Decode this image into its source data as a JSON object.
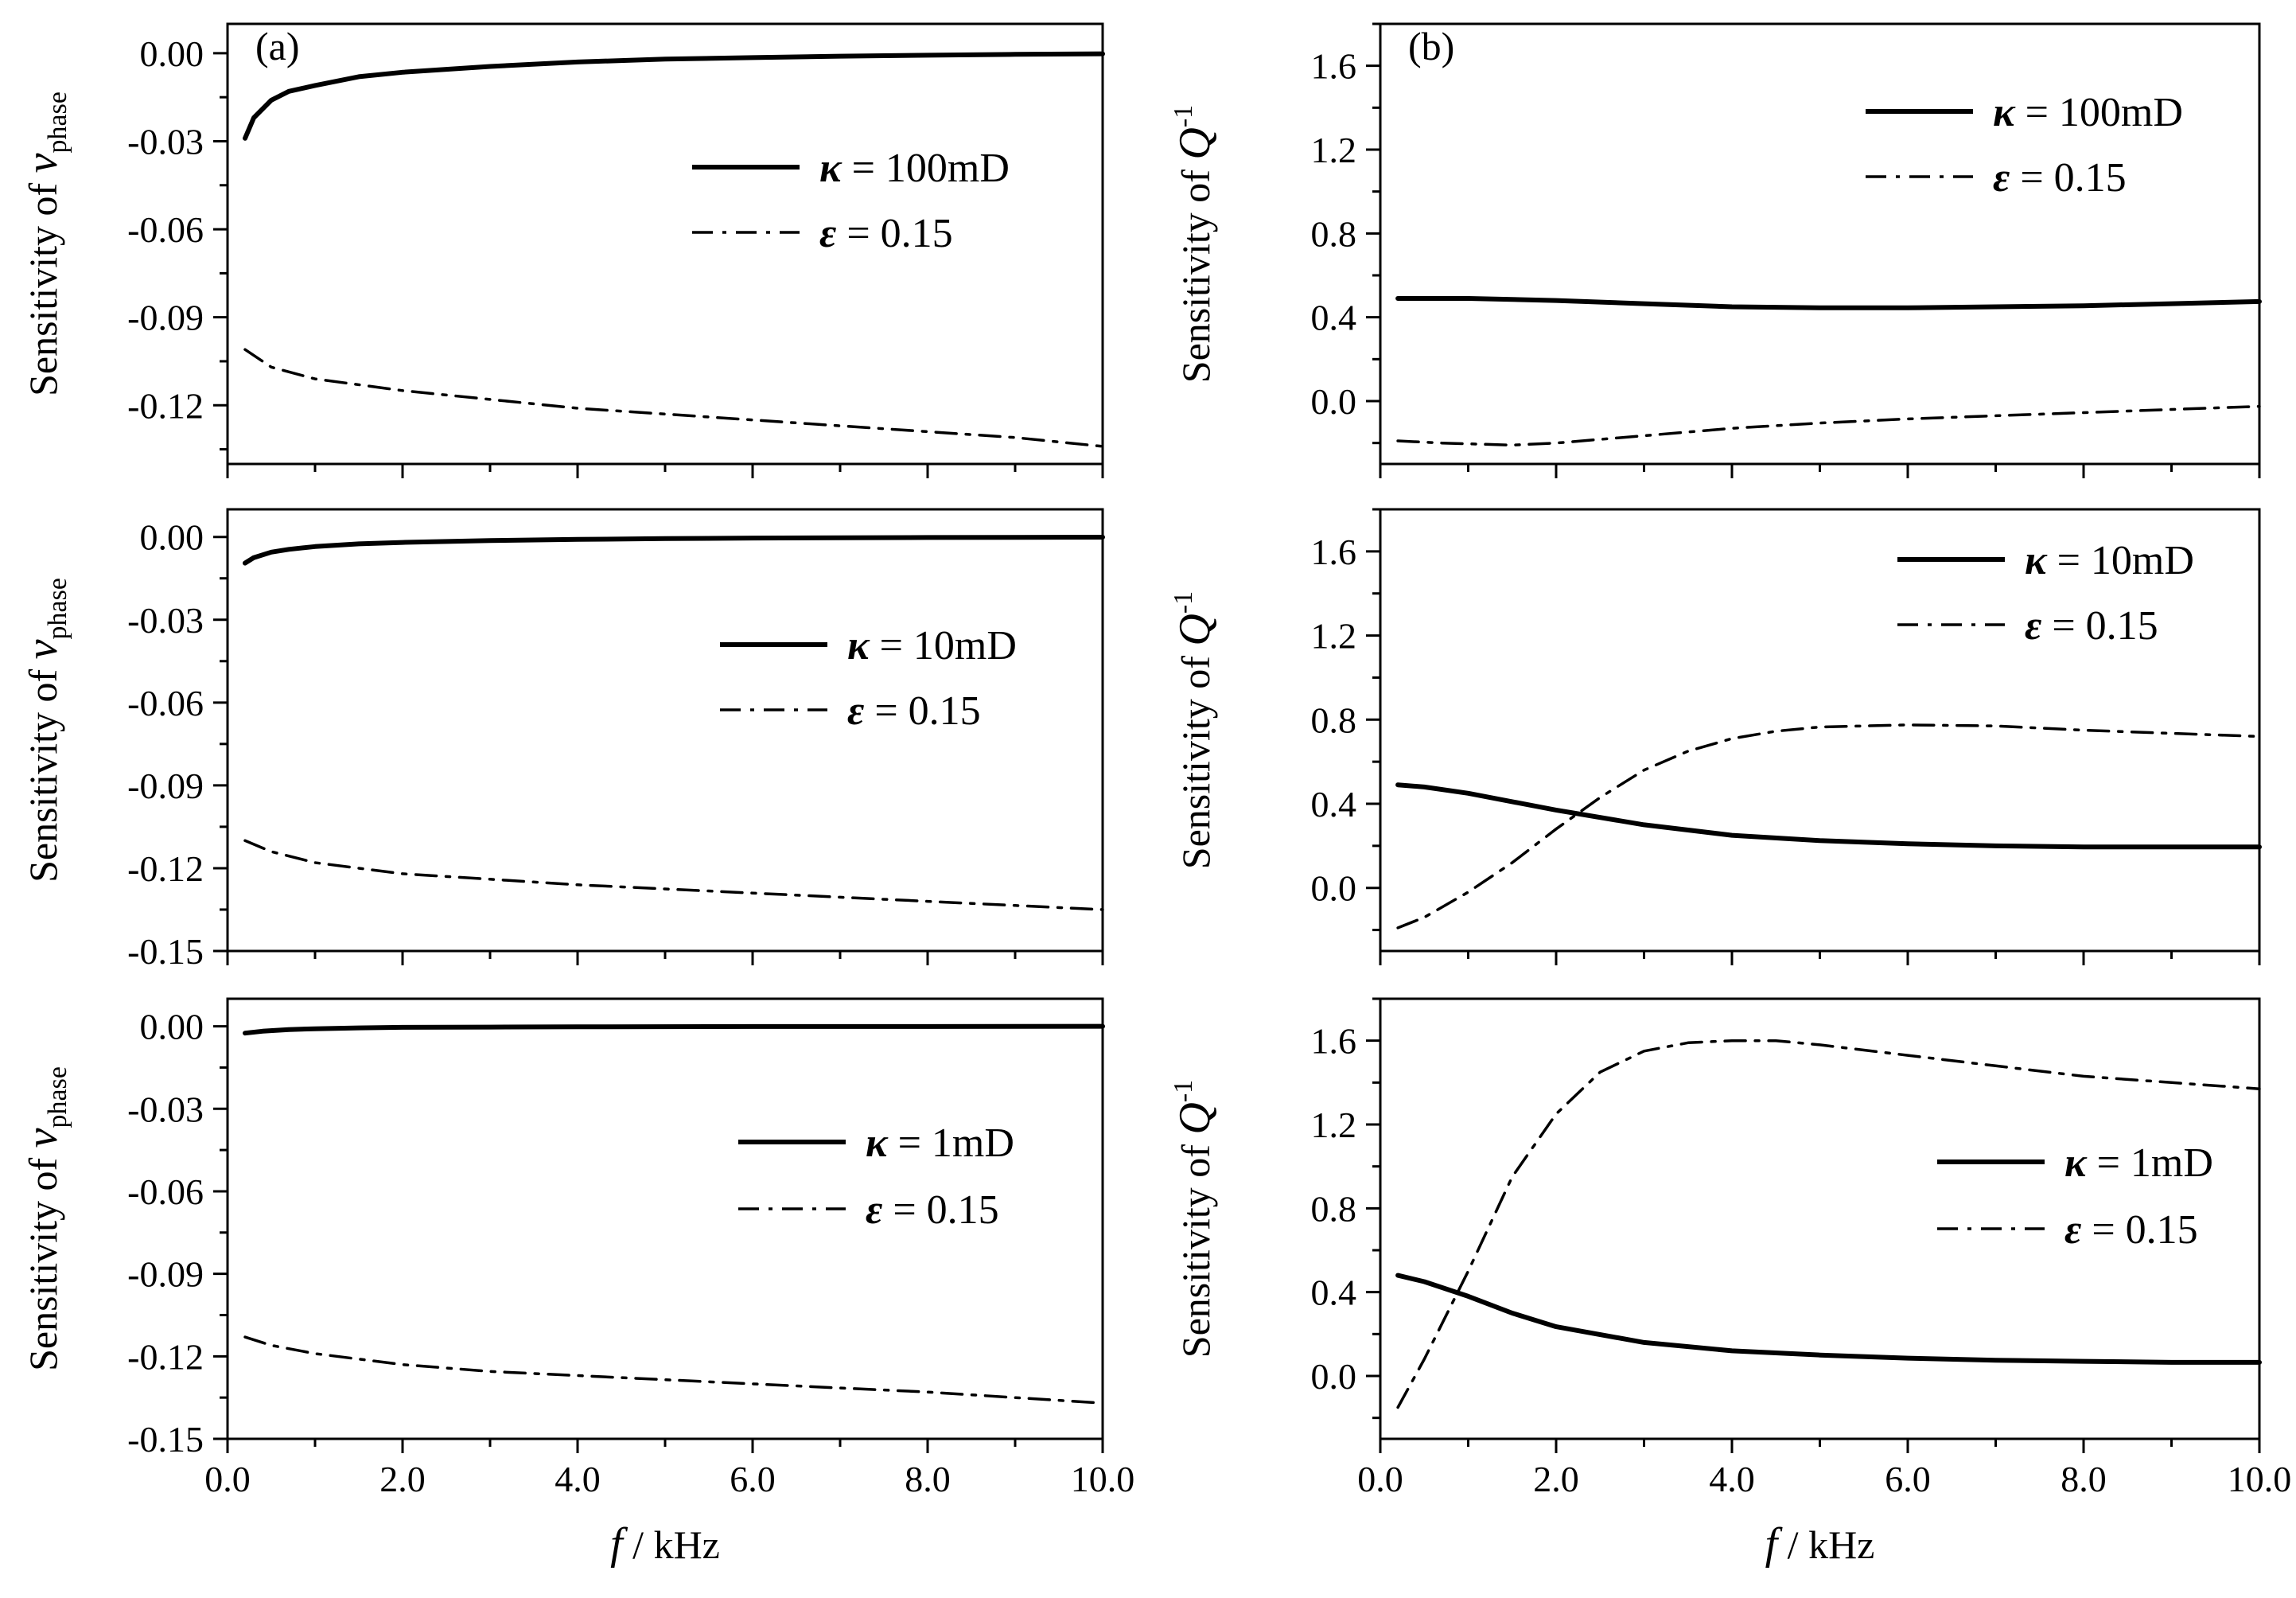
{
  "figure": {
    "columns": [
      {
        "id": "a",
        "panel_label": "(a)",
        "ylabel_main": "Sensitivity of ",
        "ylabel_var": "v",
        "ylabel_sub": "phase",
        "ylabel_sup": "",
        "xlabel_var": "f",
        "xlabel_unit": " / kHz"
      },
      {
        "id": "b",
        "panel_label": "(b)",
        "ylabel_main": "Sensitivity of ",
        "ylabel_var": "Q",
        "ylabel_sub": "",
        "ylabel_sup": "-1",
        "xlabel_var": "f",
        "xlabel_unit": " / kHz"
      }
    ]
  },
  "chart_data": [
    {
      "type": "line",
      "panel": "a-top",
      "xlim": [
        0,
        10
      ],
      "ylim": [
        -0.14,
        0.01
      ],
      "yticks": [
        -0.12,
        -0.09,
        -0.06,
        -0.03,
        0.0
      ],
      "ytick_labels": [
        "-0.12",
        "-0.09",
        "-0.06",
        "-0.03",
        "0.00"
      ],
      "xticks": [
        0,
        2,
        4,
        6,
        8,
        10
      ],
      "xtick_labels": [
        "0.0",
        "2.0",
        "4.0",
        "6.0",
        "8.0",
        "10.0"
      ],
      "show_xtick_labels": false,
      "legend_position": "right-upper",
      "series": [
        {
          "name": "κ",
          "label_suffix": " = 100mD",
          "style": "solid",
          "x": [
            0.2,
            0.3,
            0.5,
            0.7,
            1.0,
            1.5,
            2.0,
            3.0,
            4.0,
            5.0,
            6.0,
            7.0,
            8.0,
            9.0,
            10.0
          ],
          "y": [
            -0.029,
            -0.022,
            -0.016,
            -0.013,
            -0.011,
            -0.008,
            -0.0065,
            -0.0045,
            -0.003,
            -0.002,
            -0.0015,
            -0.001,
            -0.0007,
            -0.0004,
            -0.0002
          ]
        },
        {
          "name": "ε",
          "label_suffix": " = 0.15",
          "style": "dashdot",
          "x": [
            0.2,
            0.5,
            1.0,
            2.0,
            3.0,
            4.0,
            5.0,
            6.0,
            7.0,
            8.0,
            9.0,
            10.0
          ],
          "y": [
            -0.101,
            -0.107,
            -0.111,
            -0.115,
            -0.118,
            -0.121,
            -0.123,
            -0.125,
            -0.127,
            -0.129,
            -0.131,
            -0.134
          ]
        }
      ]
    },
    {
      "type": "line",
      "panel": "a-middle",
      "xlim": [
        0,
        10
      ],
      "ylim": [
        -0.15,
        0.01
      ],
      "yticks": [
        -0.15,
        -0.12,
        -0.09,
        -0.06,
        -0.03,
        0.0
      ],
      "ytick_labels": [
        "-0.15",
        "-0.12",
        "-0.09",
        "-0.06",
        "-0.03",
        "0.00"
      ],
      "xticks": [
        0,
        2,
        4,
        6,
        8,
        10
      ],
      "xtick_labels": [
        "0.0",
        "2.0",
        "4.0",
        "6.0",
        "8.0",
        "10.0"
      ],
      "show_xtick_labels": false,
      "legend_position": "right-center",
      "series": [
        {
          "name": "κ",
          "label_suffix": " = 10mD",
          "style": "solid",
          "x": [
            0.2,
            0.3,
            0.5,
            0.7,
            1.0,
            1.5,
            2.0,
            3.0,
            4.0,
            5.0,
            6.0,
            8.0,
            10.0
          ],
          "y": [
            -0.0095,
            -0.0075,
            -0.0055,
            -0.0045,
            -0.0035,
            -0.0025,
            -0.002,
            -0.0013,
            -0.0009,
            -0.0006,
            -0.0004,
            -0.0002,
            -0.0001
          ]
        },
        {
          "name": "ε",
          "label_suffix": " = 0.15",
          "style": "dashdot",
          "x": [
            0.2,
            0.5,
            1.0,
            2.0,
            3.0,
            4.0,
            5.0,
            6.0,
            7.0,
            8.0,
            9.0,
            10.0
          ],
          "y": [
            -0.11,
            -0.114,
            -0.118,
            -0.122,
            -0.124,
            -0.126,
            -0.1275,
            -0.129,
            -0.1305,
            -0.132,
            -0.1335,
            -0.135
          ]
        }
      ]
    },
    {
      "type": "line",
      "panel": "a-bottom",
      "xlim": [
        0,
        10
      ],
      "ylim": [
        -0.15,
        0.01
      ],
      "yticks": [
        -0.15,
        -0.12,
        -0.09,
        -0.06,
        -0.03,
        0.0
      ],
      "ytick_labels": [
        "-0.15",
        "-0.12",
        "-0.09",
        "-0.06",
        "-0.03",
        "0.00"
      ],
      "xticks": [
        0,
        2,
        4,
        6,
        8,
        10
      ],
      "xtick_labels": [
        "0.0",
        "2.0",
        "4.0",
        "6.0",
        "8.0",
        "10.0"
      ],
      "show_xtick_labels": true,
      "legend_position": "right-center",
      "series": [
        {
          "name": "κ",
          "label_suffix": " = 1mD",
          "style": "solid",
          "x": [
            0.2,
            0.4,
            0.7,
            1.0,
            1.5,
            2.0,
            3.0,
            4.0,
            6.0,
            8.0,
            10.0
          ],
          "y": [
            -0.0025,
            -0.0018,
            -0.0012,
            -0.0009,
            -0.0006,
            -0.0004,
            -0.0003,
            -0.0002,
            -0.0001,
            -0.0001,
            0.0
          ]
        },
        {
          "name": "ε",
          "label_suffix": " = 0.15",
          "style": "dashdot",
          "x": [
            0.2,
            0.5,
            1.0,
            2.0,
            3.0,
            4.0,
            5.0,
            6.0,
            7.0,
            8.0,
            9.0,
            10.0
          ],
          "y": [
            -0.113,
            -0.116,
            -0.119,
            -0.123,
            -0.1255,
            -0.127,
            -0.1285,
            -0.13,
            -0.1315,
            -0.133,
            -0.135,
            -0.137
          ]
        }
      ]
    },
    {
      "type": "line",
      "panel": "b-top",
      "xlim": [
        0,
        10
      ],
      "ylim": [
        -0.3,
        1.8
      ],
      "yticks": [
        0.0,
        0.4,
        0.8,
        1.2,
        1.6
      ],
      "ytick_labels": [
        "0.0",
        "0.4",
        "0.8",
        "1.2",
        "1.6"
      ],
      "xticks": [
        0,
        2,
        4,
        6,
        8,
        10
      ],
      "xtick_labels": [
        "0.0",
        "2.0",
        "4.0",
        "6.0",
        "8.0",
        "10.0"
      ],
      "show_xtick_labels": false,
      "legend_position": "top-right",
      "series": [
        {
          "name": "κ",
          "label_suffix": " = 100mD",
          "style": "solid",
          "x": [
            0.2,
            1.0,
            2.0,
            3.0,
            4.0,
            5.0,
            6.0,
            7.0,
            8.0,
            9.0,
            10.0
          ],
          "y": [
            0.49,
            0.49,
            0.48,
            0.465,
            0.45,
            0.445,
            0.445,
            0.45,
            0.455,
            0.465,
            0.475
          ]
        },
        {
          "name": "ε",
          "label_suffix": " = 0.15",
          "style": "dashdot",
          "x": [
            0.2,
            0.7,
            1.5,
            2.0,
            3.0,
            4.0,
            5.0,
            6.0,
            7.0,
            8.0,
            9.0,
            10.0
          ],
          "y": [
            -0.19,
            -0.2,
            -0.21,
            -0.2,
            -0.165,
            -0.13,
            -0.105,
            -0.085,
            -0.07,
            -0.055,
            -0.04,
            -0.025
          ]
        }
      ]
    },
    {
      "type": "line",
      "panel": "b-middle",
      "xlim": [
        0,
        10
      ],
      "ylim": [
        -0.3,
        1.8
      ],
      "yticks": [
        0.0,
        0.4,
        0.8,
        1.2,
        1.6
      ],
      "ytick_labels": [
        "0.0",
        "0.4",
        "0.8",
        "1.2",
        "1.6"
      ],
      "xticks": [
        0,
        2,
        4,
        6,
        8,
        10
      ],
      "xtick_labels": [
        "0.0",
        "2.0",
        "4.0",
        "6.0",
        "8.0",
        "10.0"
      ],
      "show_xtick_labels": false,
      "legend_position": "top-right",
      "series": [
        {
          "name": "κ",
          "label_suffix": " = 10mD",
          "style": "solid",
          "x": [
            0.2,
            0.5,
            1.0,
            1.5,
            2.0,
            3.0,
            4.0,
            5.0,
            6.0,
            7.0,
            8.0,
            9.0,
            10.0
          ],
          "y": [
            0.49,
            0.48,
            0.45,
            0.41,
            0.37,
            0.3,
            0.25,
            0.225,
            0.21,
            0.2,
            0.195,
            0.195,
            0.195
          ]
        },
        {
          "name": "ε",
          "label_suffix": " = 0.15",
          "style": "dashdot",
          "x": [
            0.2,
            0.5,
            1.0,
            1.5,
            2.0,
            2.5,
            3.0,
            3.5,
            4.0,
            4.5,
            5.0,
            6.0,
            7.0,
            8.0,
            9.0,
            10.0
          ],
          "y": [
            -0.19,
            -0.14,
            -0.02,
            0.12,
            0.28,
            0.43,
            0.56,
            0.65,
            0.71,
            0.745,
            0.765,
            0.775,
            0.77,
            0.75,
            0.735,
            0.72
          ]
        }
      ]
    },
    {
      "type": "line",
      "panel": "b-bottom",
      "xlim": [
        0,
        10
      ],
      "ylim": [
        -0.3,
        1.8
      ],
      "yticks": [
        0.0,
        0.4,
        0.8,
        1.2,
        1.6
      ],
      "ytick_labels": [
        "0.0",
        "0.4",
        "0.8",
        "1.2",
        "1.6"
      ],
      "xticks": [
        0,
        2,
        4,
        6,
        8,
        10
      ],
      "xtick_labels": [
        "0.0",
        "2.0",
        "4.0",
        "6.0",
        "8.0",
        "10.0"
      ],
      "show_xtick_labels": true,
      "legend_position": "right-center",
      "series": [
        {
          "name": "κ",
          "label_suffix": " = 1mD",
          "style": "solid",
          "x": [
            0.2,
            0.5,
            1.0,
            1.5,
            2.0,
            3.0,
            4.0,
            5.0,
            6.0,
            7.0,
            8.0,
            9.0,
            10.0
          ],
          "y": [
            0.48,
            0.45,
            0.38,
            0.3,
            0.235,
            0.16,
            0.12,
            0.1,
            0.085,
            0.075,
            0.07,
            0.065,
            0.065
          ]
        },
        {
          "name": "ε",
          "label_suffix": " = 0.15",
          "style": "dashdot",
          "x": [
            0.2,
            0.5,
            1.0,
            1.5,
            2.0,
            2.5,
            3.0,
            3.5,
            4.0,
            4.5,
            5.0,
            6.0,
            7.0,
            8.0,
            9.0,
            10.0
          ],
          "y": [
            -0.15,
            0.08,
            0.5,
            0.95,
            1.25,
            1.45,
            1.55,
            1.59,
            1.6,
            1.6,
            1.58,
            1.53,
            1.48,
            1.43,
            1.4,
            1.37
          ]
        }
      ]
    }
  ]
}
